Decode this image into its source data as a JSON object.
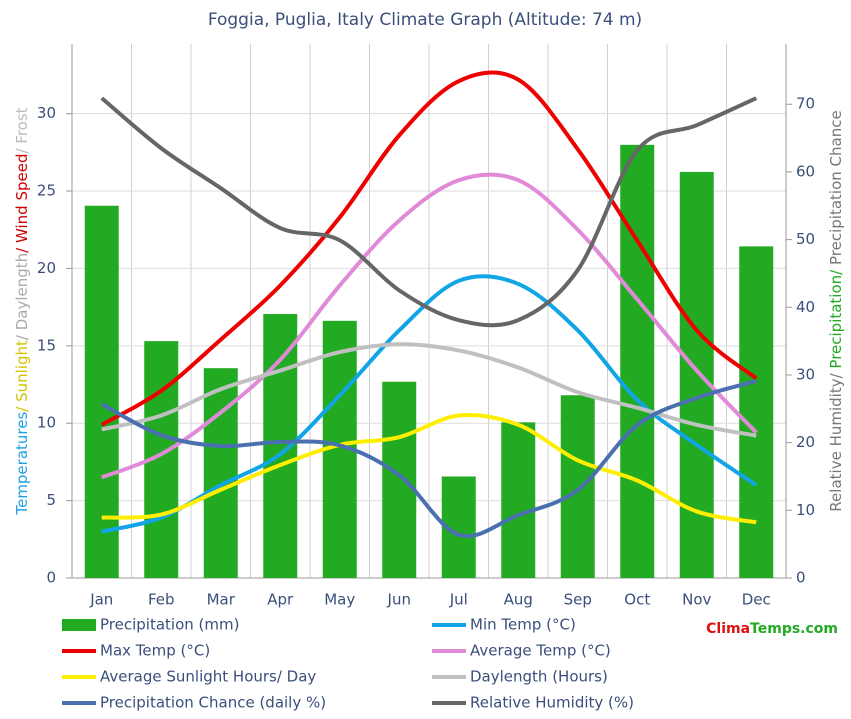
{
  "chart_data": {
    "type": "combo",
    "title": "Foggia, Puglia, Italy Climate Graph (Altitude: 74 m)",
    "y_label": [
      {
        "text": "Temperatures",
        "color": "#1aa3e0"
      },
      {
        "text": "/ Sunlight",
        "color": "#d4c400"
      },
      {
        "text": "/ Daylength",
        "color": "#aaaaaa"
      },
      {
        "text": "/ Wind Speed",
        "color": "#cc0000"
      },
      {
        "text": "/ Frost",
        "color": "#bbbbbb"
      }
    ],
    "y2_label": [
      {
        "text": "Relative Humidity/ ",
        "color": "#777777"
      },
      {
        "text": "Precipitation/ ",
        "color": "#22aa22"
      },
      {
        "text": "Precipitation Chance",
        "color": "#777777"
      }
    ],
    "brand": [
      {
        "text": "Clima",
        "color": "#dd1111"
      },
      {
        "text": "Temps.com",
        "color": "#22aa22"
      }
    ],
    "categories": [
      "Jan",
      "Feb",
      "Mar",
      "Apr",
      "May",
      "Jun",
      "Jul",
      "Aug",
      "Sep",
      "Oct",
      "Nov",
      "Dec"
    ],
    "ylim": [
      0,
      34.5
    ],
    "yticks": [
      0,
      5,
      10,
      15,
      20,
      25,
      30
    ],
    "y2lim": [
      0,
      78.9
    ],
    "y2ticks": [
      0,
      10,
      20,
      30,
      40,
      50,
      60,
      70
    ],
    "grid": true,
    "series": [
      {
        "name": "Precipitation (mm)",
        "type": "bar",
        "axis": "y2",
        "color": "#22aa22",
        "values": [
          55,
          35,
          31,
          39,
          38,
          29,
          15,
          23,
          27,
          64,
          60,
          49
        ]
      },
      {
        "name": "Min Temp (°C)",
        "type": "line",
        "color": "#11a5e5",
        "values": [
          3.0,
          3.9,
          6.0,
          8.0,
          11.8,
          16.0,
          19.2,
          19.0,
          16.0,
          11.5,
          8.6,
          6.0
        ]
      },
      {
        "name": "Max Temp (°C)",
        "type": "line",
        "color": "#ee0000",
        "values": [
          9.9,
          12.1,
          15.4,
          18.9,
          23.3,
          28.6,
          32.1,
          32.2,
          27.7,
          21.8,
          16.0,
          12.9
        ]
      },
      {
        "name": "Average Temp (°C)",
        "type": "line",
        "color": "#e08ad8",
        "values": [
          6.5,
          8.0,
          10.7,
          14.1,
          18.9,
          23.1,
          25.7,
          25.7,
          22.5,
          18.0,
          13.4,
          9.4
        ]
      },
      {
        "name": "Average Sunlight Hours/ Day",
        "type": "line",
        "color": "#ffee00",
        "values": [
          3.9,
          4.1,
          5.7,
          7.3,
          8.6,
          9.1,
          10.5,
          9.9,
          7.6,
          6.3,
          4.3,
          3.6
        ]
      },
      {
        "name": "Daylength (Hours)",
        "type": "line",
        "color": "#c0c0c0",
        "values": [
          9.6,
          10.5,
          12.2,
          13.4,
          14.6,
          15.1,
          14.7,
          13.6,
          12.0,
          11.0,
          9.9,
          9.2
        ]
      },
      {
        "name": "Precipitation Chance (daily %)",
        "type": "line",
        "axis": "y2",
        "color": "#4a70b0",
        "values": [
          25.7,
          21.1,
          19.5,
          20.1,
          19.6,
          15.2,
          6.4,
          9.3,
          13.0,
          22.6,
          26.6,
          29.1
        ]
      },
      {
        "name": "Relative Humidity (%)",
        "type": "line",
        "axis": "y2",
        "color": "#666666",
        "values": [
          70.9,
          63.5,
          57.6,
          51.7,
          49.9,
          42.5,
          38.1,
          38.1,
          45.5,
          63.2,
          66.9,
          70.9
        ]
      }
    ]
  }
}
